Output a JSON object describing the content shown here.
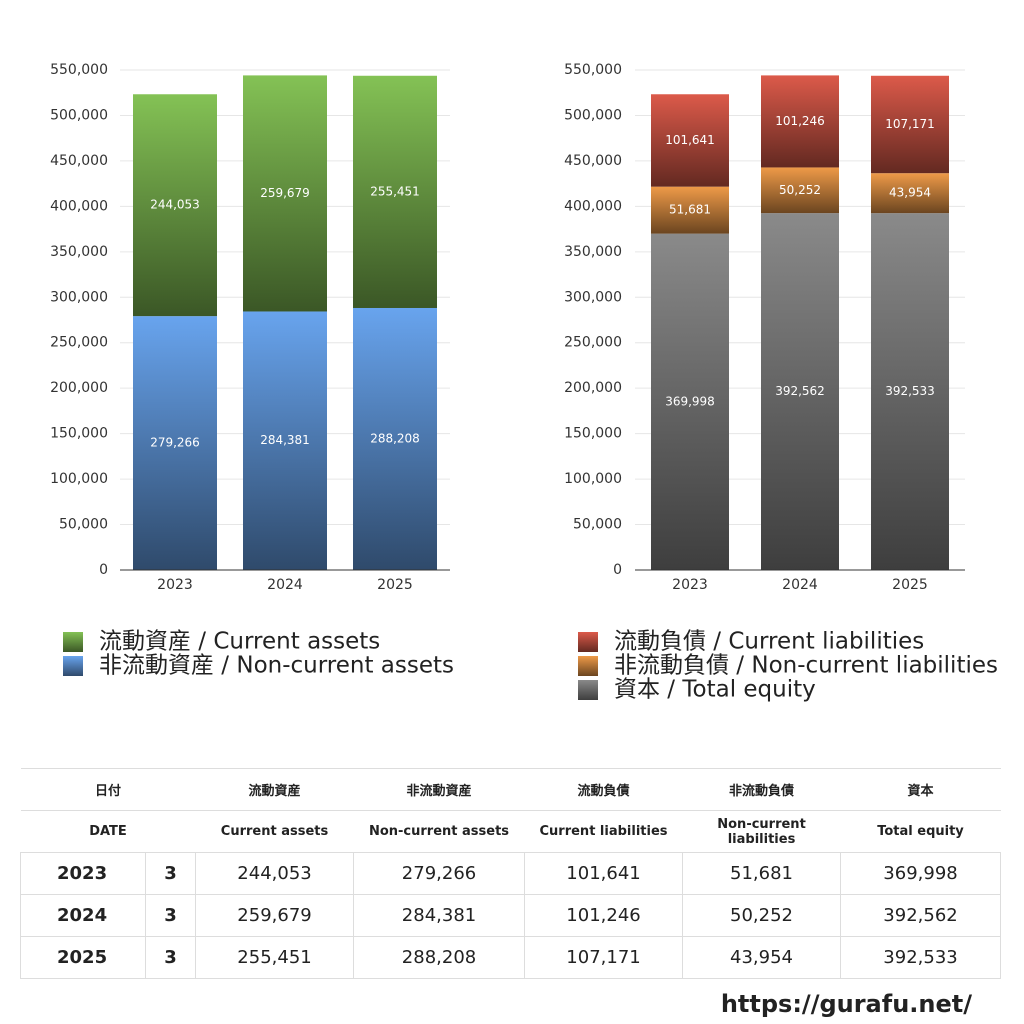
{
  "chart_data": [
    {
      "type": "bar",
      "stacked": true,
      "grid": true,
      "categories": [
        "2023",
        "2024",
        "2025"
      ],
      "series": [
        {
          "name": "流動資産 / Current assets",
          "color": "#84c255",
          "values": [
            244053,
            259679,
            255451
          ],
          "value_labels": [
            "244,053",
            "259,679",
            "255,451"
          ]
        },
        {
          "name": "非流動資産 / Non-current assets",
          "color": "#68a4ee",
          "values": [
            279266,
            284381,
            288208
          ],
          "value_labels": [
            "279,266",
            "284,381",
            "288,208"
          ]
        }
      ],
      "ylim": [
        0,
        550000
      ],
      "yticks": [
        0,
        {
          "value": 50000,
          "label": "50,000"
        },
        {
          "value": 100000,
          "label": "100,000"
        },
        {
          "value": 150000,
          "label": "150,000"
        },
        {
          "value": 200000,
          "label": "200,000"
        },
        {
          "value": 250000,
          "label": "250,000"
        },
        {
          "value": 300000,
          "label": "300,000"
        },
        {
          "value": 350000,
          "label": "350,000"
        },
        {
          "value": 400000,
          "label": "400,000"
        },
        {
          "value": 450000,
          "label": "450,000"
        },
        {
          "value": 500000,
          "label": "500,000"
        },
        {
          "value": 550000,
          "label": "550,000"
        }
      ]
    },
    {
      "type": "bar",
      "stacked": true,
      "grid": true,
      "categories": [
        "2023",
        "2024",
        "2025"
      ],
      "series": [
        {
          "name": "流動負債 / Current liabilities",
          "color": "#dc5a4a",
          "values": [
            101641,
            101246,
            107171
          ],
          "value_labels": [
            "101,641",
            "101,246",
            "107,171"
          ]
        },
        {
          "name": "非流動負債 / Non-current liabilities",
          "color": "#ee9a48",
          "values": [
            51681,
            50252,
            43954
          ],
          "value_labels": [
            "51,681",
            "50,252",
            "43,954"
          ]
        },
        {
          "name": "資本 / Total equity",
          "color": "#8a8a8a",
          "values": [
            369998,
            392562,
            392533
          ],
          "value_labels": [
            "369,998",
            "392,562",
            "392,533"
          ]
        }
      ],
      "ylim": [
        0,
        550000
      ],
      "yticks": [
        0,
        {
          "value": 50000,
          "label": "50,000"
        },
        {
          "value": 100000,
          "label": "100,000"
        },
        {
          "value": 150000,
          "label": "150,000"
        },
        {
          "value": 200000,
          "label": "200,000"
        },
        {
          "value": 250000,
          "label": "250,000"
        },
        {
          "value": 300000,
          "label": "300,000"
        },
        {
          "value": 350000,
          "label": "350,000"
        },
        {
          "value": 400000,
          "label": "400,000"
        },
        {
          "value": 450000,
          "label": "450,000"
        },
        {
          "value": 500000,
          "label": "500,000"
        },
        {
          "value": 550000,
          "label": "550,000"
        }
      ]
    }
  ],
  "table": {
    "header": [
      [
        "日付",
        "流動資産",
        "非流動資産",
        "流動負債",
        "非流動負債",
        "資本"
      ],
      [
        "DATE",
        "Current assets",
        "Non-current assets",
        "Current liabilities",
        "Non-current liabilities",
        "Total equity"
      ]
    ],
    "rows": [
      [
        "2023",
        "3",
        "244,053",
        "279,266",
        "101,641",
        "51,681",
        "369,998"
      ],
      [
        "2024",
        "3",
        "259,679",
        "284,381",
        "101,246",
        "50,252",
        "392,562"
      ],
      [
        "2025",
        "3",
        "255,451",
        "288,208",
        "107,171",
        "43,954",
        "392,533"
      ]
    ]
  },
  "footer": "https://gurafu.net/"
}
